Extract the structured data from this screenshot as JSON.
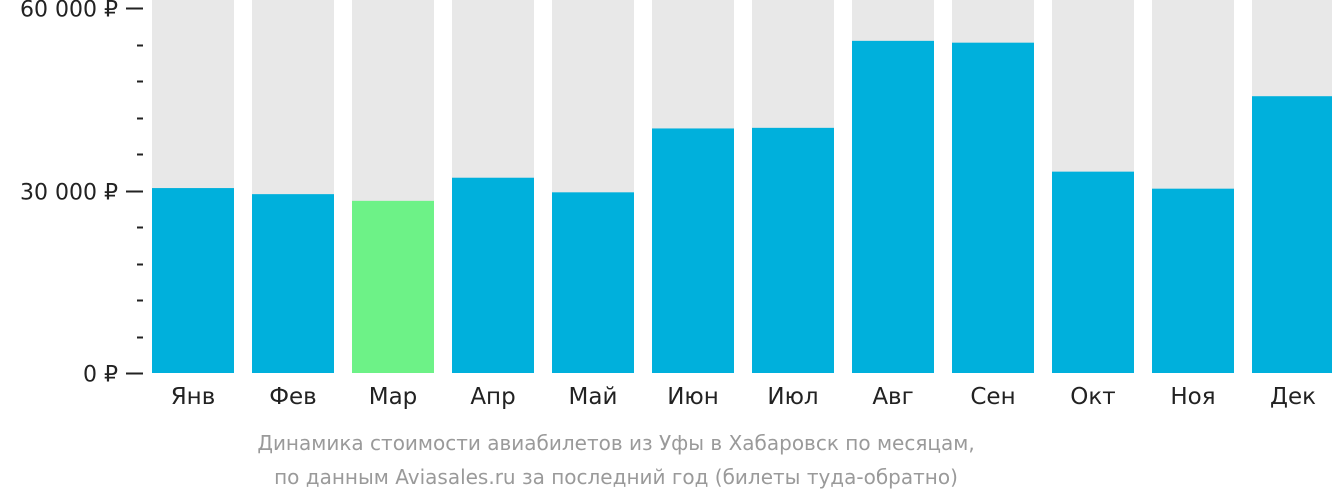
{
  "chart_data": {
    "type": "bar",
    "categories": [
      "Янв",
      "Фев",
      "Мар",
      "Апр",
      "Май",
      "Июн",
      "Июл",
      "Авг",
      "Сен",
      "Окт",
      "Ноя",
      "Дек"
    ],
    "values": [
      30400,
      29400,
      28300,
      32100,
      29700,
      40200,
      40300,
      54600,
      54300,
      33100,
      30300,
      45500
    ],
    "highlight_index": 2,
    "ylim": [
      0,
      60000
    ],
    "yticks": [
      {
        "value": 0,
        "label": "0 ₽"
      },
      {
        "value": 30000,
        "label": "30 000 ₽"
      },
      {
        "value": 60000,
        "label": "60 000 ₽"
      }
    ],
    "minor_tick_step": 6000,
    "colors": {
      "bar": "#00b0dc",
      "highlight": "#6df287",
      "background_bar": "#e8e8e8",
      "axis": "#222222"
    },
    "caption_lines": [
      "Динамика стоимости авиабилетов из Уфы в Хабаровск по месяцам,",
      "по данным Aviasales.ru за последний год (билеты туда-обратно)"
    ]
  }
}
